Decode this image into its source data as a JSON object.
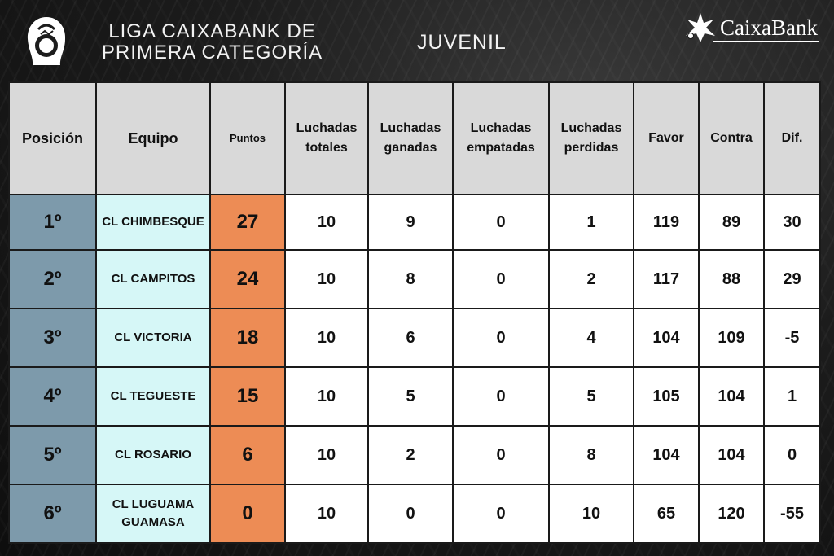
{
  "header": {
    "league_line1": "LIGA CAIXABANK DE",
    "league_line2": "PRIMERA CATEGORÍA",
    "category": "JUVENIL",
    "sponsor": "CaixaBank"
  },
  "colors": {
    "position_bg": "#7d9aab",
    "team_bg": "#d6f7f7",
    "points_bg": "#ed8c55",
    "header_bg": "#d9d9d9"
  },
  "table": {
    "headers": {
      "posicion": "Posición",
      "equipo": "Equipo",
      "puntos": "Puntos",
      "luchadas_totales": [
        "Luchadas",
        "totales"
      ],
      "luchadas_ganadas": [
        "Luchadas",
        "ganadas"
      ],
      "luchadas_empatadas": [
        "Luchadas",
        "empatadas"
      ],
      "luchadas_perdidas": [
        "Luchadas",
        "perdidas"
      ],
      "favor": "Favor",
      "contra": "Contra",
      "dif": "Dif."
    },
    "rows": [
      {
        "pos": "1º",
        "team": "CL CHIMBESQUE",
        "pts": "27",
        "tot": "10",
        "gan": "9",
        "emp": "0",
        "per": "1",
        "favor": "119",
        "contra": "89",
        "dif": "30"
      },
      {
        "pos": "2º",
        "team": "CL CAMPITOS",
        "pts": "24",
        "tot": "10",
        "gan": "8",
        "emp": "0",
        "per": "2",
        "favor": "117",
        "contra": "88",
        "dif": "29"
      },
      {
        "pos": "3º",
        "team": "CL VICTORIA",
        "pts": "18",
        "tot": "10",
        "gan": "6",
        "emp": "0",
        "per": "4",
        "favor": "104",
        "contra": "109",
        "dif": "-5"
      },
      {
        "pos": "4º",
        "team": "CL TEGUESTE",
        "pts": "15",
        "tot": "10",
        "gan": "5",
        "emp": "0",
        "per": "5",
        "favor": "105",
        "contra": "104",
        "dif": "1"
      },
      {
        "pos": "5º",
        "team": "CL ROSARIO",
        "pts": "6",
        "tot": "10",
        "gan": "2",
        "emp": "0",
        "per": "8",
        "favor": "104",
        "contra": "104",
        "dif": "0"
      },
      {
        "pos": "6º",
        "team": [
          "CL LUGUAMA",
          "GUAMASA"
        ],
        "pts": "0",
        "tot": "10",
        "gan": "0",
        "emp": "0",
        "per": "10",
        "favor": "65",
        "contra": "120",
        "dif": "-55"
      }
    ]
  }
}
